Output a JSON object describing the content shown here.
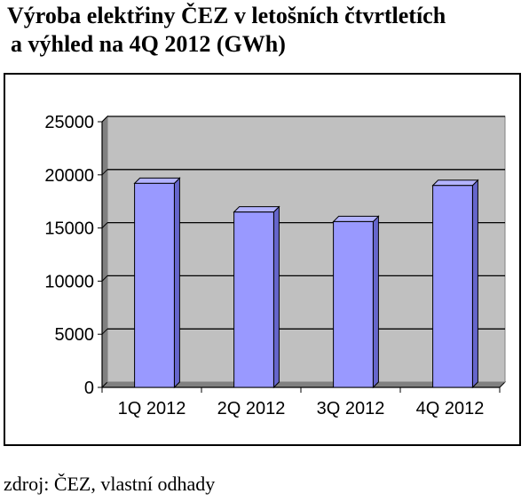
{
  "title_line1": "Výroba elektřiny ČEZ v letošních čtvrtletích",
  "title_line2": "a výhled na 4Q 2012 (GWh)",
  "source": "zdroj: ČEZ, vlastní odhady",
  "colors": {
    "bar_fill": "#9999ff",
    "bar_stroke": "#000000",
    "plot_bg": "#c0c0c0",
    "grid": "#000000"
  },
  "chart_data": {
    "type": "bar",
    "title": "Výroba elektřiny ČEZ v letošních čtvrtletích a výhled na 4Q 2012 (GWh)",
    "categories": [
      "1Q 2012",
      "2Q 2012",
      "3Q 2012",
      "4Q 2012"
    ],
    "values": [
      19200,
      16500,
      15600,
      19000
    ],
    "ylim": [
      0,
      25000
    ],
    "yticks": [
      0,
      5000,
      10000,
      15000,
      20000,
      25000
    ],
    "xlabel": "",
    "ylabel": "",
    "grid": true,
    "legend": false
  }
}
